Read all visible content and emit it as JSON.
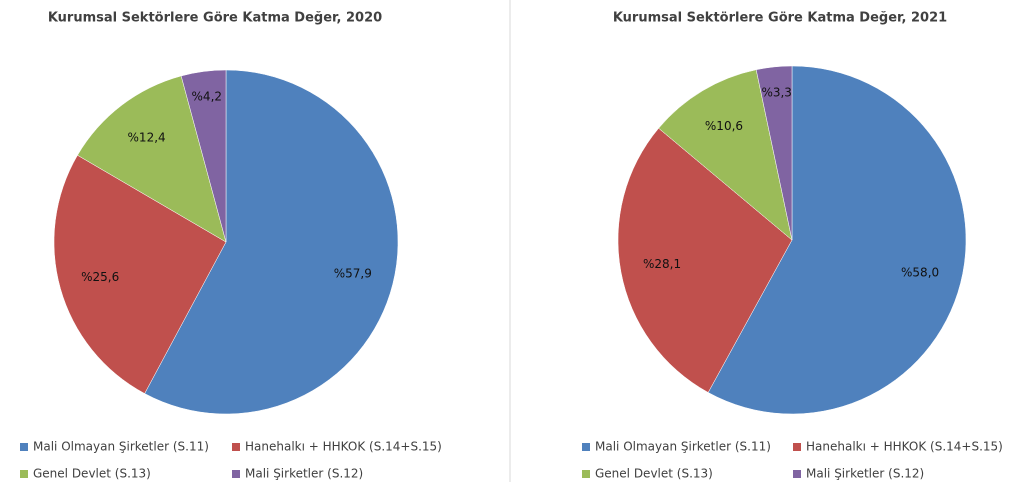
{
  "chart_data": [
    {
      "type": "pie",
      "title": "Kurumsal Sektörlere Göre Katma Değer, 2020",
      "categories": [
        "Mali Olmayan Şirketler (S.11)",
        "Hanehalkı + HHKOK (S.14+S.15)",
        "Genel Devlet (S.13)",
        "Mali Şirketler (S.12)"
      ],
      "values": [
        57.9,
        25.6,
        12.4,
        4.2
      ],
      "value_labels": [
        "%57,9",
        "%25,6",
        "%12,4",
        "%4,2"
      ],
      "colors": [
        "#4f81bd",
        "#c0504d",
        "#9bbb59",
        "#8064a2"
      ]
    },
    {
      "type": "pie",
      "title": "Kurumsal Sektörlere Göre Katma Değer, 2021",
      "categories": [
        "Mali Olmayan Şirketler (S.11)",
        "Hanehalkı + HHKOK (S.14+S.15)",
        "Genel Devlet (S.13)",
        "Mali Şirketler (S.12)"
      ],
      "values": [
        58.0,
        28.1,
        10.6,
        3.3
      ],
      "value_labels": [
        "%58,0",
        "%28,1",
        "%10,6",
        "%3,3"
      ],
      "colors": [
        "#4f81bd",
        "#c0504d",
        "#9bbb59",
        "#8064a2"
      ]
    }
  ]
}
